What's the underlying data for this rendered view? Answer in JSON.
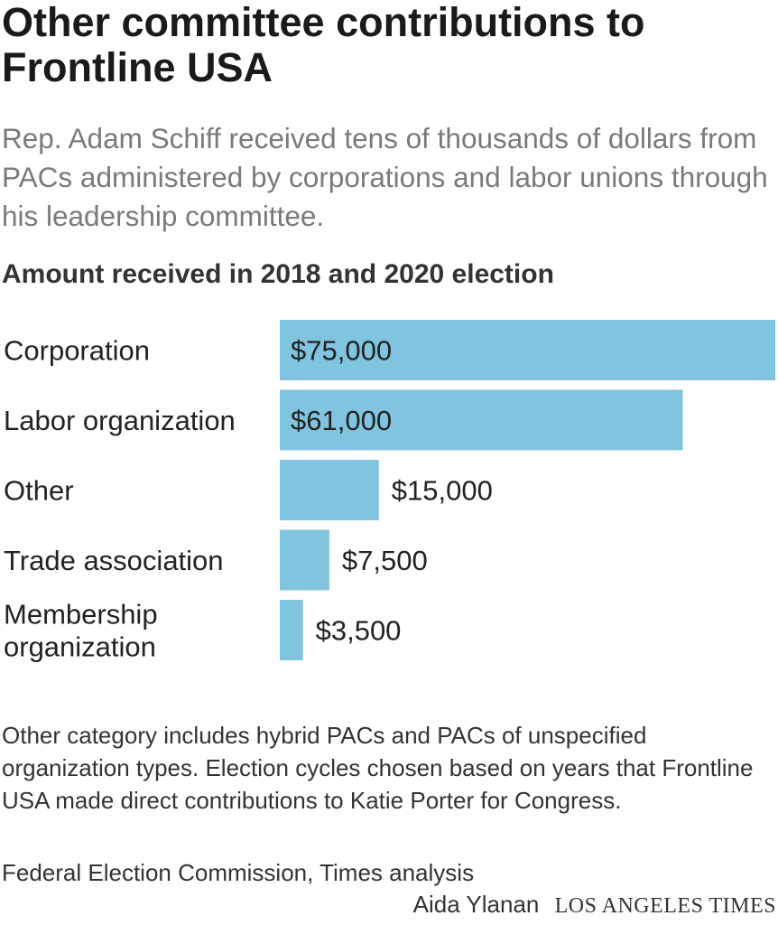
{
  "title": "Other committee contributions to Frontline USA",
  "subtitle": "Rep. Adam Schiff received tens of thousands of dollars from PACs administered by corporations and labor unions through his leadership committee.",
  "chart_heading": "Amount received in 2018 and 2020 election",
  "notes": "Other category includes hybrid PACs and PACs of unspecified organization types. Election cycles chosen based on years that Frontline USA made direct contributions to Katie Porter for Congress.",
  "source": "Federal Election Commission, Times analysis",
  "credit": {
    "author": "Aida Ylanan",
    "publisher": "LOS ANGELES TIMES"
  },
  "chart_data": {
    "type": "bar",
    "orientation": "horizontal",
    "title": "Amount received in 2018 and 2020 election",
    "categories": [
      [
        "Corporation"
      ],
      [
        "Labor organization"
      ],
      [
        "Other"
      ],
      [
        "Trade association"
      ],
      [
        "Membership",
        "organization"
      ]
    ],
    "values": [
      75000,
      61000,
      15000,
      7500,
      3500
    ],
    "value_labels": [
      "$75,000",
      "$61,000",
      "$15,000",
      "$7,500",
      "$3,500"
    ],
    "xlim": [
      0,
      75000
    ],
    "grid": false,
    "bar_color": "#80c4df"
  }
}
